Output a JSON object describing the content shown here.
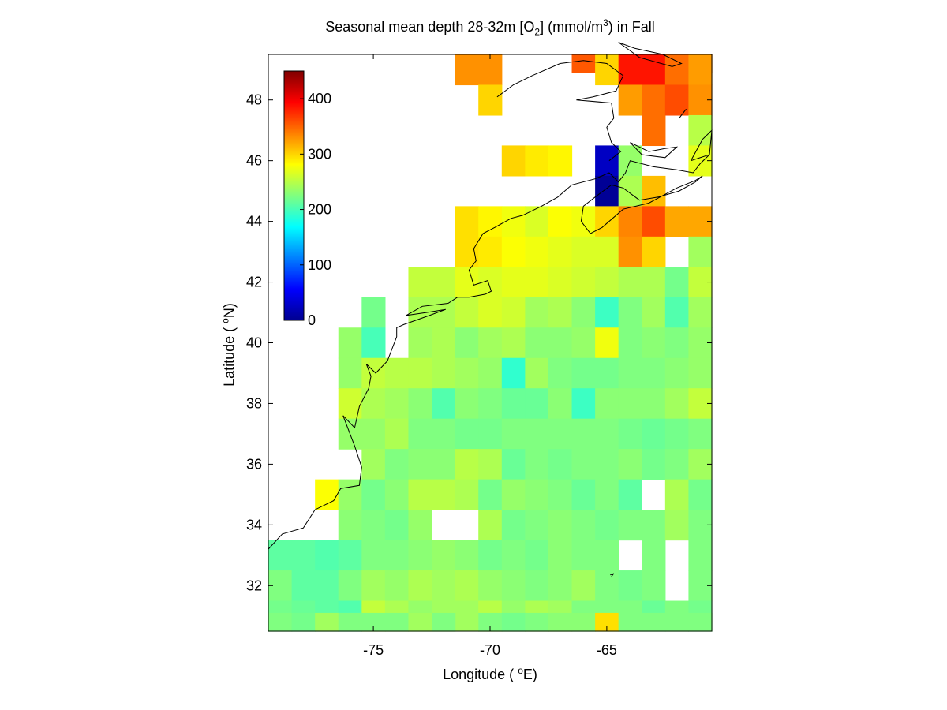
{
  "chart_data": {
    "type": "heatmap",
    "title": "Seasonal mean depth 28-32m [O 2] (mmol/m3) in  Fall",
    "title_parts": {
      "pre": "Seasonal mean depth 28-32m [O",
      "sub": "2",
      "mid": "] (mmol/m",
      "sup": "3",
      "post": ") in  Fall"
    },
    "xlabel": "Longitude ( oE)",
    "xlabel_parts": {
      "pre": "Longitude ( ",
      "sup": "o",
      "post": "E)"
    },
    "ylabel": "Latitude ( oN)",
    "ylabel_parts": {
      "pre": "Latitude ( ",
      "sup": "o",
      "post": "N)"
    },
    "xlim": [
      -79.5,
      -60.5
    ],
    "ylim": [
      30.5,
      49.5
    ],
    "x_ticks": [
      -75,
      -70,
      -65
    ],
    "x_tick_labels": [
      "-75",
      "-70",
      "-65"
    ],
    "y_ticks": [
      32,
      34,
      36,
      38,
      40,
      42,
      44,
      46,
      48
    ],
    "y_tick_labels": [
      "32",
      "34",
      "36",
      "38",
      "40",
      "42",
      "44",
      "46",
      "48"
    ],
    "colorbar": {
      "colormap": "jet",
      "range": [
        0,
        450
      ],
      "ticks": [
        0,
        100,
        200,
        300,
        400
      ],
      "tick_labels": [
        "0",
        "100",
        "200",
        "300",
        "400"
      ],
      "placement": "inside top-left"
    },
    "grid": false,
    "cell_size_deg": 1,
    "lon_centers": [
      -79,
      -78,
      -77,
      -76,
      -75,
      -74,
      -73,
      -72,
      -71,
      -70,
      -69,
      -68,
      -67,
      -66,
      -65,
      -64,
      -63,
      -62,
      -61
    ],
    "lat_rows_desc": [
      49,
      48,
      47,
      46,
      45,
      44,
      43,
      42,
      41,
      40,
      39,
      38,
      37,
      36,
      35,
      34,
      33,
      32,
      31
    ],
    "values": [
      [
        null,
        null,
        null,
        null,
        null,
        null,
        null,
        null,
        null,
        null,
        null,
        null,
        null,
        355,
        355,
        355,
        360,
        null,
        350
      ],
      [
        null,
        null,
        null,
        null,
        null,
        null,
        null,
        null,
        330,
        330,
        null,
        null,
        null,
        null,
        300,
        385,
        385,
        345,
        325
      ],
      [
        null,
        null,
        null,
        null,
        null,
        null,
        null,
        null,
        null,
        300,
        null,
        null,
        null,
        null,
        null,
        325,
        345,
        360,
        330
      ],
      [
        null,
        null,
        null,
        null,
        null,
        null,
        null,
        null,
        null,
        null,
        null,
        null,
        null,
        null,
        null,
        null,
        345,
        null,
        250
      ],
      [
        null,
        null,
        null,
        null,
        null,
        null,
        null,
        null,
        null,
        null,
        300,
        290,
        285,
        null,
        30,
        235,
        null,
        null,
        270
      ],
      [
        null,
        null,
        null,
        null,
        null,
        null,
        null,
        null,
        null,
        null,
        null,
        null,
        null,
        null,
        10,
        245,
        310,
        null,
        null
      ],
      [
        null,
        null,
        null,
        null,
        null,
        null,
        null,
        null,
        295,
        285,
        275,
        265,
        280,
        275,
        300,
        335,
        360,
        320,
        320
      ],
      [
        null,
        null,
        null,
        null,
        null,
        null,
        null,
        null,
        295,
        290,
        280,
        275,
        270,
        265,
        265,
        330,
        300,
        null,
        240
      ],
      [
        null,
        null,
        null,
        null,
        null,
        null,
        255,
        255,
        270,
        265,
        270,
        270,
        265,
        260,
        255,
        245,
        245,
        220,
        255
      ],
      [
        null,
        null,
        null,
        null,
        220,
        null,
        245,
        245,
        255,
        265,
        260,
        240,
        245,
        230,
        195,
        225,
        240,
        205,
        240
      ],
      [
        null,
        null,
        null,
        235,
        200,
        null,
        240,
        245,
        230,
        240,
        245,
        230,
        230,
        235,
        275,
        225,
        230,
        225,
        235
      ],
      [
        null,
        null,
        null,
        235,
        255,
        250,
        250,
        245,
        240,
        235,
        190,
        240,
        225,
        220,
        220,
        225,
        225,
        230,
        235
      ],
      [
        null,
        null,
        null,
        260,
        245,
        240,
        230,
        205,
        230,
        225,
        215,
        215,
        230,
        195,
        230,
        230,
        230,
        240,
        255
      ],
      [
        null,
        null,
        null,
        235,
        235,
        245,
        225,
        225,
        220,
        220,
        225,
        225,
        225,
        225,
        225,
        220,
        215,
        220,
        225
      ],
      [
        null,
        null,
        null,
        null,
        240,
        225,
        230,
        230,
        250,
        245,
        215,
        225,
        220,
        225,
        225,
        230,
        220,
        225,
        240
      ],
      [
        null,
        null,
        280,
        235,
        220,
        230,
        250,
        250,
        245,
        220,
        235,
        230,
        225,
        215,
        225,
        210,
        null,
        245,
        220
      ],
      [
        null,
        null,
        null,
        230,
        225,
        220,
        235,
        null,
        null,
        245,
        220,
        225,
        230,
        225,
        220,
        225,
        225,
        240,
        225
      ],
      [
        210,
        210,
        205,
        210,
        225,
        225,
        230,
        235,
        230,
        220,
        225,
        220,
        230,
        225,
        225,
        null,
        225,
        null,
        225
      ],
      [
        225,
        210,
        210,
        225,
        240,
        235,
        245,
        240,
        245,
        235,
        230,
        225,
        230,
        240,
        225,
        220,
        225,
        null,
        225
      ],
      [
        220,
        215,
        210,
        205,
        255,
        245,
        235,
        240,
        240,
        250,
        235,
        245,
        240,
        225,
        225,
        225,
        215,
        225,
        220
      ],
      [
        225,
        220,
        240,
        225,
        225,
        225,
        240,
        225,
        null,
        225,
        220,
        225,
        230,
        230,
        295,
        225,
        225,
        225,
        225
      ]
    ],
    "values_row_lats_desc": [
      49.4,
      49,
      48,
      47,
      46,
      45,
      44,
      43,
      42,
      41,
      40,
      39,
      38,
      37,
      36,
      35,
      34,
      33,
      32,
      31,
      30.6
    ],
    "coastline_color": "#000000"
  }
}
